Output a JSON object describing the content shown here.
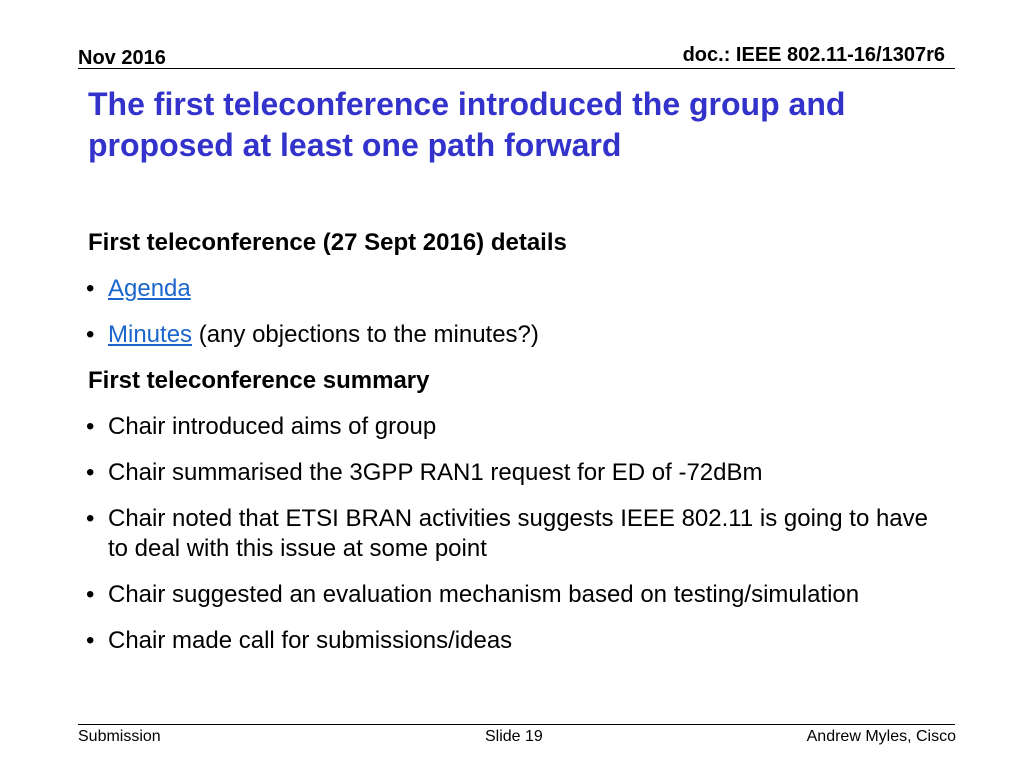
{
  "header": {
    "date": "Nov 2016",
    "doc_id": "doc.: IEEE 802.11-16/1307r6"
  },
  "title": "The first teleconference introduced the group and proposed at least one path forward",
  "content": {
    "details_heading": "First teleconference (27 Sept 2016) details",
    "agenda_link": "Agenda",
    "minutes_link": "Minutes",
    "minutes_note": " (any objections to the minutes?)",
    "summary_heading": "First teleconference summary",
    "summary_items": [
      "Chair introduced aims of group",
      "Chair summarised the 3GPP RAN1 request for ED of -72dBm",
      "Chair noted that ETSI BRAN activities suggests IEEE 802.11 is going to have to deal with this issue at some point",
      "Chair suggested an evaluation mechanism based on testing/simulation",
      "Chair made call for submissions/ideas"
    ],
    "bullet_glyph": "•"
  },
  "footer": {
    "left": "Submission",
    "center": "Slide 19",
    "right": "Andrew Myles, Cisco"
  },
  "colors": {
    "title": "#3333cc",
    "link": "#1a66cc"
  }
}
